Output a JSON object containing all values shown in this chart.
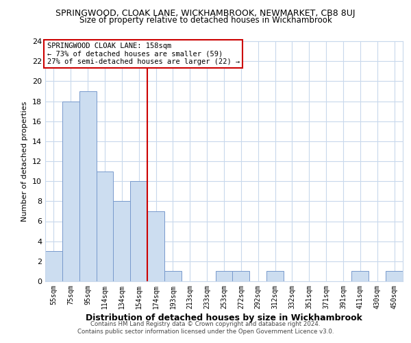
{
  "title": "SPRINGWOOD, CLOAK LANE, WICKHAMBROOK, NEWMARKET, CB8 8UJ",
  "subtitle": "Size of property relative to detached houses in Wickhambrook",
  "xlabel": "Distribution of detached houses by size in Wickhambrook",
  "ylabel": "Number of detached properties",
  "bin_labels": [
    "55sqm",
    "75sqm",
    "95sqm",
    "114sqm",
    "134sqm",
    "154sqm",
    "174sqm",
    "193sqm",
    "213sqm",
    "233sqm",
    "253sqm",
    "272sqm",
    "292sqm",
    "312sqm",
    "332sqm",
    "351sqm",
    "371sqm",
    "391sqm",
    "411sqm",
    "430sqm",
    "450sqm"
  ],
  "bar_values": [
    3,
    18,
    19,
    11,
    8,
    10,
    7,
    1,
    0,
    0,
    1,
    1,
    0,
    1,
    0,
    0,
    0,
    0,
    1,
    0,
    1
  ],
  "bar_color": "#ccddf0",
  "bar_edge_color": "#7799cc",
  "redline_x": 5.5,
  "highlight_color": "#cc0000",
  "ylim": [
    0,
    24
  ],
  "yticks": [
    0,
    2,
    4,
    6,
    8,
    10,
    12,
    14,
    16,
    18,
    20,
    22,
    24
  ],
  "annotation_title": "SPRINGWOOD CLOAK LANE: 158sqm",
  "annotation_line1": "← 73% of detached houses are smaller (59)",
  "annotation_line2": "27% of semi-detached houses are larger (22) →",
  "footer_line1": "Contains HM Land Registry data © Crown copyright and database right 2024.",
  "footer_line2": "Contains public sector information licensed under the Open Government Licence v3.0.",
  "background_color": "#ffffff",
  "grid_color": "#c8d8ec",
  "title_fontsize": 9,
  "subtitle_fontsize": 8.5,
  "ylabel_fontsize": 8,
  "xlabel_fontsize": 9
}
